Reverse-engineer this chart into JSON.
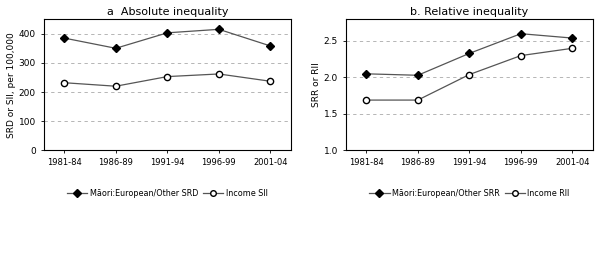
{
  "x_labels": [
    "1981-84",
    "1986-89",
    "1991-94",
    "1996-99",
    "2001-04"
  ],
  "abs_srd": [
    385,
    350,
    403,
    415,
    358
  ],
  "abs_sii": [
    232,
    220,
    253,
    262,
    237
  ],
  "rel_srr": [
    2.05,
    2.03,
    2.33,
    2.6,
    2.54
  ],
  "rel_rii": [
    1.69,
    1.69,
    2.04,
    2.3,
    2.4
  ],
  "title_abs": "a  Absolute inequality",
  "title_rel": "b. Relative inequality",
  "ylabel_abs": "SRD or SII, per 100,000",
  "ylabel_rel": "SRR or RII",
  "ylim_abs": [
    0,
    450
  ],
  "ylim_rel": [
    1.0,
    2.8
  ],
  "yticks_abs": [
    0,
    100,
    200,
    300,
    400
  ],
  "yticks_rel": [
    1.0,
    1.5,
    2.0,
    2.5
  ],
  "legend_abs_srd": "Māori:European/Other SRD",
  "legend_abs_sii": "Income SII",
  "legend_rel_srr": "Māori:European/Other SRR",
  "legend_rel_rii": "Income RII",
  "line_color": "#555555",
  "bg_color": "#ffffff",
  "grid_color": "#aaaaaa"
}
